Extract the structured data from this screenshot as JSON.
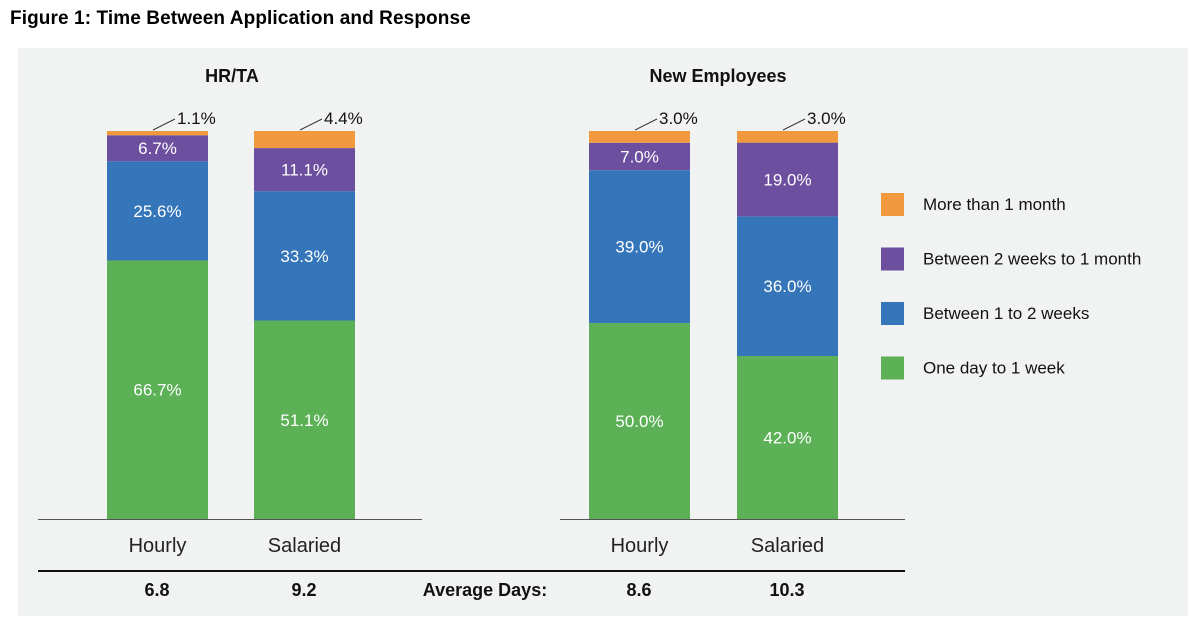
{
  "figure_title": "Figure 1: Time Between Application and Response",
  "colors": {
    "more_than_1_month": "#f0993e",
    "between_2_weeks_to_1_month": "#6c4f9f",
    "between_1_to_2_weeks": "#3575b9",
    "one_day_to_1_week": "#5cb157",
    "panel_background": "#f1f2f2"
  },
  "legend": [
    {
      "label": "More than 1 month",
      "color": "#f0993e"
    },
    {
      "label": "Between 2 weeks to 1 month",
      "color": "#6c4f9f"
    },
    {
      "label": "Between 1 to 2 weeks",
      "color": "#3575b9"
    },
    {
      "label": "One day to 1 week",
      "color": "#5cb157"
    }
  ],
  "average_days": {
    "label": "Average Days:",
    "hrta_hourly": "6.8",
    "hrta_salaried": "9.2",
    "new_hourly": "8.6",
    "new_salaried": "10.3"
  },
  "chart_data": [
    {
      "type": "bar",
      "stacked": true,
      "title": "HR/TA",
      "categories": [
        "Hourly",
        "Salaried"
      ],
      "series": [
        {
          "name": "One day to 1 week",
          "values": [
            66.7,
            51.1
          ],
          "labels": [
            "66.7%",
            "51.1%"
          ]
        },
        {
          "name": "Between 1 to 2 weeks",
          "values": [
            25.6,
            33.3
          ],
          "labels": [
            "25.6%",
            "33.3%"
          ]
        },
        {
          "name": "Between 2 weeks to 1 month",
          "values": [
            6.7,
            11.1
          ],
          "labels": [
            "6.7%",
            "11.1%"
          ]
        },
        {
          "name": "More than 1 month",
          "values": [
            1.1,
            4.4
          ],
          "labels": [
            "1.1%",
            "4.4%"
          ]
        }
      ],
      "ylim": [
        0,
        100
      ]
    },
    {
      "type": "bar",
      "stacked": true,
      "title": "New Employees",
      "categories": [
        "Hourly",
        "Salaried"
      ],
      "series": [
        {
          "name": "One day to 1 week",
          "values": [
            50.0,
            42.0
          ],
          "labels": [
            "50.0%",
            "42.0%"
          ]
        },
        {
          "name": "Between 1 to 2 weeks",
          "values": [
            39.0,
            36.0
          ],
          "labels": [
            "39.0%",
            "36.0%"
          ]
        },
        {
          "name": "Between 2 weeks to 1 month",
          "values": [
            7.0,
            19.0
          ],
          "labels": [
            "7.0%",
            "19.0%"
          ]
        },
        {
          "name": "More than 1 month",
          "values": [
            3.0,
            3.0
          ],
          "labels": [
            "3.0%",
            "3.0%"
          ]
        }
      ],
      "ylim": [
        0,
        100
      ]
    }
  ]
}
